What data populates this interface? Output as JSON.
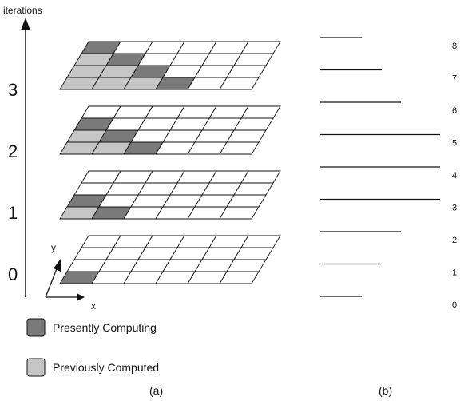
{
  "axis": {
    "y_label": "iterations",
    "x_label": "x",
    "y2_label": "y"
  },
  "iteration_labels": [
    "0",
    "1",
    "2",
    "3"
  ],
  "planes": [
    {
      "iteration": "0",
      "cells": {
        "dark": [
          [
            0,
            0
          ]
        ],
        "light": []
      }
    },
    {
      "iteration": "1",
      "cells": {
        "dark": [
          [
            1,
            0
          ],
          [
            0,
            1
          ]
        ],
        "light": [
          [
            0,
            0
          ]
        ]
      }
    },
    {
      "iteration": "2",
      "cells": {
        "dark": [
          [
            2,
            0
          ],
          [
            1,
            1
          ],
          [
            0,
            2
          ]
        ],
        "light": [
          [
            0,
            0
          ],
          [
            1,
            0
          ],
          [
            0,
            1
          ]
        ]
      }
    },
    {
      "iteration": "3",
      "cells": {
        "dark": [
          [
            3,
            0
          ],
          [
            2,
            1
          ],
          [
            1,
            2
          ],
          [
            0,
            3
          ]
        ],
        "light": [
          [
            0,
            0
          ],
          [
            1,
            0
          ],
          [
            2,
            0
          ],
          [
            0,
            1
          ],
          [
            1,
            1
          ],
          [
            0,
            2
          ]
        ]
      }
    }
  ],
  "legend": {
    "dark_label": "Presently  Computing",
    "light_label": "Previously Computed"
  },
  "levels": [
    {
      "label": "8",
      "length": 52
    },
    {
      "label": "7",
      "length": 77
    },
    {
      "label": "6",
      "length": 101
    },
    {
      "label": "5",
      "length": 150
    },
    {
      "label": "4",
      "length": 150
    },
    {
      "label": "3",
      "length": 150
    },
    {
      "label": "2",
      "length": 101
    },
    {
      "label": "1",
      "length": 77
    },
    {
      "label": "0",
      "length": 52
    }
  ],
  "captions": {
    "a": "(a)",
    "b": "(b)"
  },
  "colors": {
    "dark": "#7a7a7a",
    "light": "#c6c6c6",
    "line": "#111111"
  }
}
